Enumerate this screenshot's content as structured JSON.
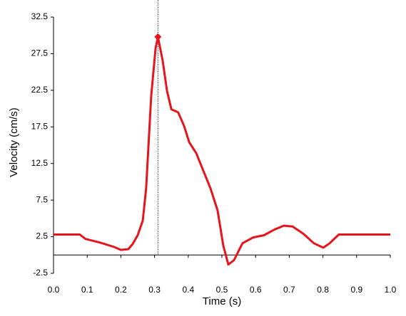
{
  "chart_data": {
    "type": "line",
    "xlabel": "Time (s)",
    "ylabel": "Velocity (cm/s)",
    "x": [
      0,
      0.078,
      0.095,
      0.138,
      0.18,
      0.2,
      0.222,
      0.235,
      0.25,
      0.265,
      0.275,
      0.29,
      0.303,
      0.31,
      0.324,
      0.337,
      0.35,
      0.37,
      0.388,
      0.403,
      0.424,
      0.445,
      0.466,
      0.487,
      0.504,
      0.519,
      0.536,
      0.561,
      0.593,
      0.625,
      0.657,
      0.684,
      0.71,
      0.742,
      0.773,
      0.801,
      0.82,
      0.847,
      1.0
    ],
    "series": [
      {
        "color": "#e8141c",
        "values": [
          2.8,
          2.8,
          2.2,
          1.7,
          1.1,
          0.7,
          0.8,
          1.5,
          2.7,
          4.7,
          9.1,
          21.7,
          28.2,
          29.8,
          26.6,
          22.4,
          19.9,
          19.5,
          17.6,
          15.4,
          13.9,
          11.5,
          9.1,
          6.1,
          1.3,
          -1.3,
          -0.7,
          1.6,
          2.4,
          2.7,
          3.5,
          4.0,
          3.9,
          2.9,
          1.6,
          1.0,
          1.6,
          2.8,
          2.8
        ]
      }
    ],
    "peak": {
      "x": 0.31,
      "y": 29.8
    },
    "xlim": [
      0,
      1
    ],
    "xticks": [
      {
        "value": 0,
        "label": "0.0"
      },
      0.1,
      0.2,
      0.3,
      0.4,
      0.5,
      0.6,
      0.7,
      0.8,
      0.9,
      {
        "value": 1,
        "label": "1.0"
      }
    ],
    "ylim": [
      -2.5,
      32.5
    ],
    "yticks": [
      -2.5,
      2.5,
      7.5,
      12.5,
      17.5,
      22.5,
      27.5,
      32.5
    ]
  }
}
